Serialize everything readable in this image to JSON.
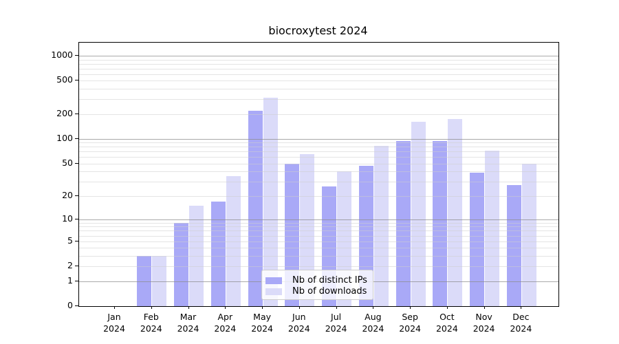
{
  "title": "biocroxytest 2024",
  "chart_data": {
    "type": "bar",
    "title": "biocroxytest 2024",
    "scale": "log1p",
    "categories": [
      "Jan",
      "Feb",
      "Mar",
      "Apr",
      "May",
      "Jun",
      "Jul",
      "Aug",
      "Sep",
      "Oct",
      "Nov",
      "Dec"
    ],
    "year_label": "2024",
    "series": [
      {
        "name": "Nb of distinct IPs",
        "color": "#a9a9f7",
        "values": [
          0,
          3,
          9,
          17,
          220,
          50,
          26,
          47,
          94,
          95,
          39,
          27
        ]
      },
      {
        "name": "Nb of downloads",
        "color": "#dbdbf9",
        "values": [
          0,
          3,
          15,
          35,
          313,
          65,
          40,
          83,
          160,
          175,
          72,
          50
        ]
      }
    ],
    "y_ticks": [
      0,
      1,
      2,
      5,
      10,
      20,
      50,
      100,
      200,
      500,
      1000
    ],
    "y_major_gridlines": [
      1,
      10,
      100,
      1000
    ],
    "y_minor_gridlines": [
      2,
      3,
      4,
      5,
      6,
      7,
      8,
      9,
      20,
      30,
      40,
      50,
      60,
      70,
      80,
      90,
      200,
      300,
      400,
      500,
      600,
      700,
      800,
      900
    ],
    "ylim": [
      0,
      1435
    ],
    "grid": true,
    "legend_position": "lower center",
    "colors": {
      "axis": "#000000",
      "grid_major": "#8c8c8c",
      "grid_minor": "#cdcdcd",
      "legend_border": "#cccccc"
    }
  }
}
